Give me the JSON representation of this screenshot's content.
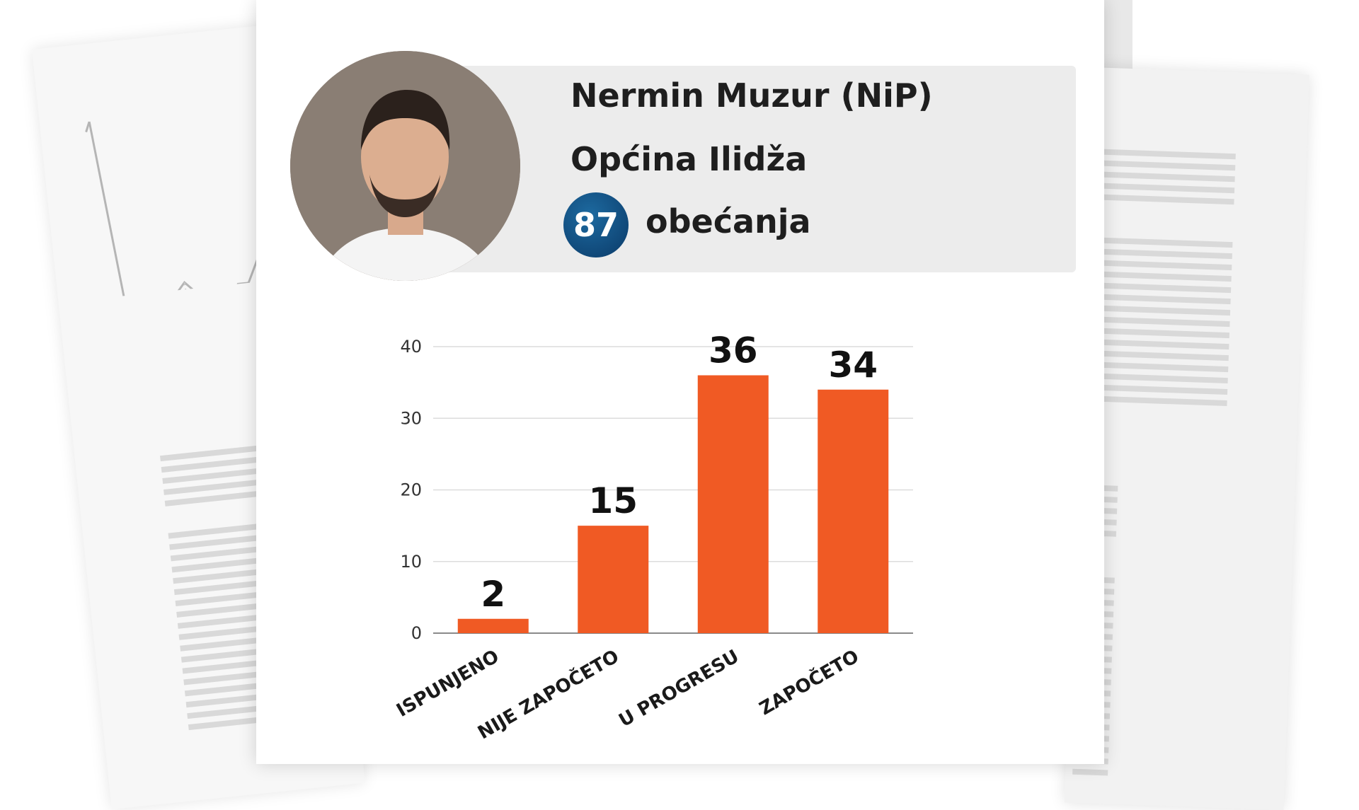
{
  "profile": {
    "name": "Nermin Muzur (NiP)",
    "municipality": "Općina Ilidža",
    "promises_count": "87",
    "promises_label": "obećanja"
  },
  "colors": {
    "bar": "#f05a24",
    "badge": "#0b4a7e",
    "header_box": "#ececec"
  },
  "chart_data": {
    "type": "bar",
    "categories": [
      "ISPUNJENO",
      "NIJE ZAPOČETO",
      "U PROGRESU",
      "ZAPOČETO"
    ],
    "values": [
      2,
      15,
      36,
      34
    ],
    "ylim": [
      0,
      40
    ],
    "yticks": [
      0,
      10,
      20,
      30,
      40
    ],
    "grid": true
  }
}
